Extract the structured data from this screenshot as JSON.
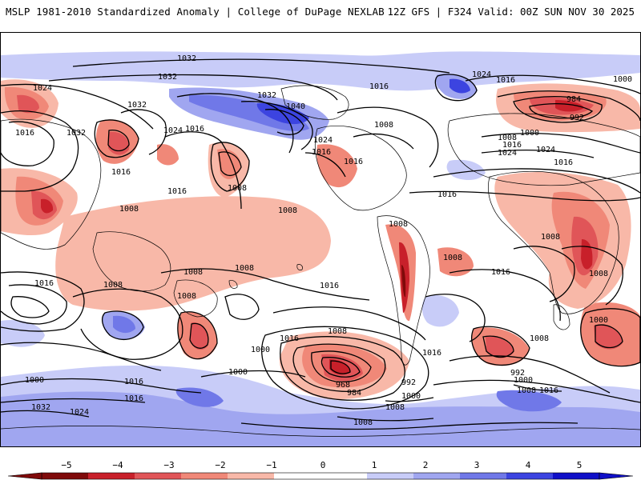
{
  "header": {
    "title_left": "MSLP 1981-2010 Standardized Anomaly | College of DuPage NEXLAB",
    "title_right": "12Z GFS | F324 Valid: 00Z SUN NOV 30 2025"
  },
  "map": {
    "projection": "global-cylindrical",
    "colors": {
      "coast": "#000000",
      "isobar": "#000000",
      "neg5": "#7f0a0a",
      "neg4": "#c8202a",
      "neg3": "#e05558",
      "neg2": "#f08878",
      "neg1": "#f8b8a8",
      "pos1": "#c8ccf8",
      "pos2": "#a0a6f0",
      "pos3": "#7078e8",
      "pos4": "#3c44e0",
      "pos5": "#1010c8"
    },
    "isobar_labels": [
      "1032",
      "1032",
      "1024",
      "1016",
      "1032",
      "1032",
      "1016",
      "1024",
      "1032",
      "1040",
      "1016",
      "1024",
      "1016",
      "1016",
      "1016",
      "1024",
      "1008",
      "1000",
      "984",
      "992",
      "1008",
      "1000",
      "1016",
      "1024",
      "1024",
      "1016",
      "1008",
      "1016",
      "1008",
      "1016",
      "1008",
      "1008",
      "1016",
      "1008",
      "1008",
      "1008",
      "1016",
      "1008",
      "1008",
      "1008",
      "1016",
      "1016",
      "1000",
      "1008",
      "1000",
      "1008",
      "968",
      "984",
      "992",
      "1000",
      "1000",
      "992",
      "1008",
      "1016",
      "1016",
      "1000",
      "1008",
      "1008",
      "1032",
      "1024",
      "1016",
      "1008",
      "1016",
      "1016",
      "1000"
    ]
  },
  "colorbar": {
    "ticks": [
      "−5",
      "−4",
      "−3",
      "−2",
      "−1",
      "0",
      "1",
      "2",
      "3",
      "4",
      "5"
    ],
    "colors": [
      "#7f0a0a",
      "#c8202a",
      "#e05558",
      "#f08878",
      "#f8b8a8",
      "#ffffff",
      "#ffffff",
      "#c8ccf8",
      "#a0a6f0",
      "#7078e8",
      "#3c44e0",
      "#1010c8"
    ]
  }
}
